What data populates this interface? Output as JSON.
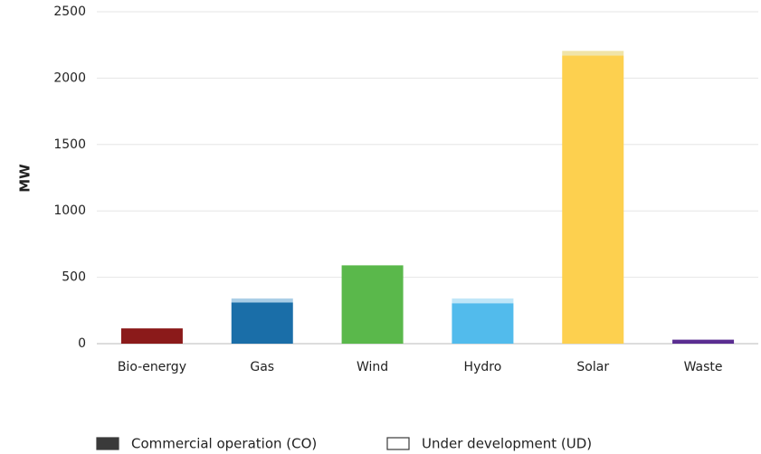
{
  "chart_data": {
    "type": "stacked_bar",
    "y_label": "MW",
    "categories": [
      "Bio-energy",
      "Gas",
      "Wind",
      "Hydro",
      "Solar",
      "Waste"
    ],
    "series": [
      {
        "name": "Commercial operation (CO)",
        "color": "#3a3a3a",
        "colors": [
          "#8b1a1a",
          "#1a6ea8",
          "#5ab84b",
          "#52bbec",
          "#fdd04f",
          "#5a2d91"
        ],
        "values": [
          115,
          310,
          590,
          305,
          2170,
          30
        ]
      },
      {
        "name": "Under development (UD)",
        "color": "#ffffff",
        "colors": [
          "#c98a8a",
          "#a8cde6",
          "#b4e0ab",
          "#bfe6f8",
          "#f0e4a8",
          "#b5a3d1"
        ],
        "values": [
          0,
          30,
          0,
          35,
          35,
          0
        ]
      }
    ],
    "ylim": [
      0,
      2500
    ],
    "yticks": [
      0,
      500,
      1000,
      1500,
      2000,
      2500
    ],
    "grid": true,
    "legend": "bottom"
  }
}
